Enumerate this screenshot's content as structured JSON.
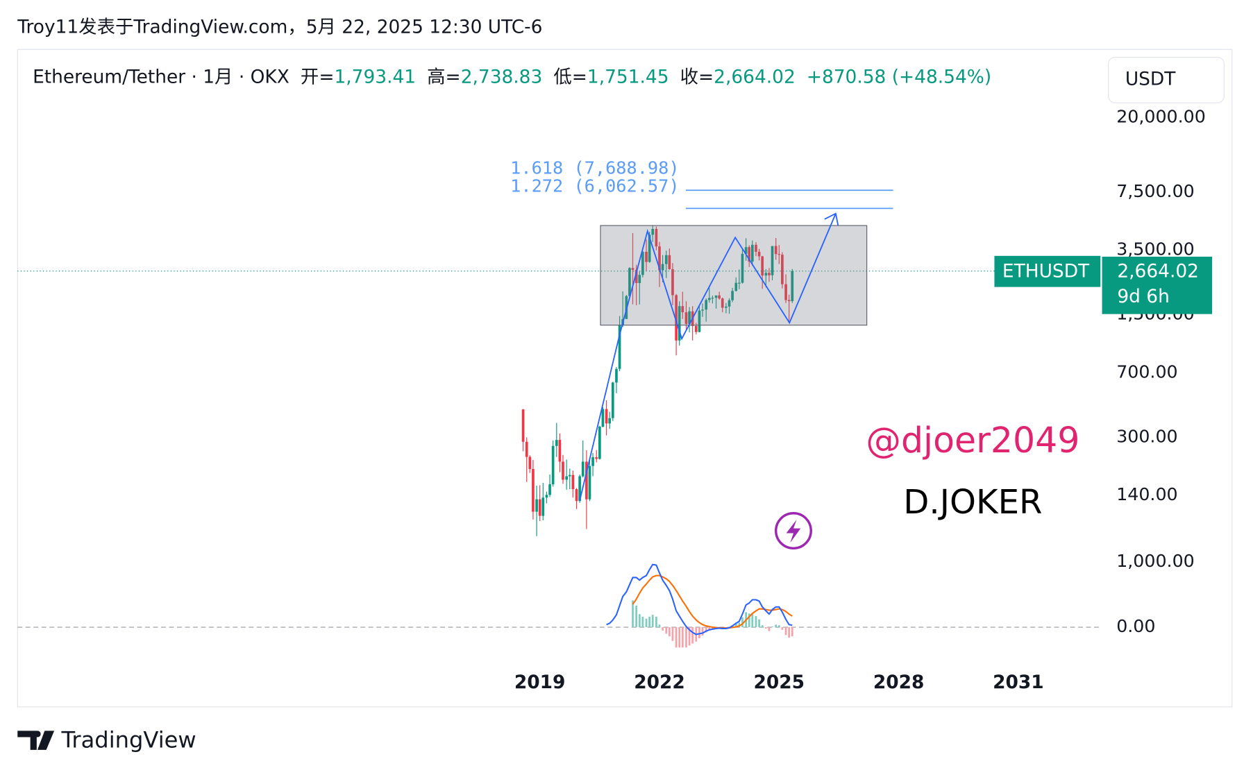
{
  "header": {
    "publisher": "Troy11发表于TradingView.com，5月 22, 2025 12:30 UTC-6"
  },
  "legend": {
    "symbol": "Ethereum/Tether · 1月 · OKX",
    "open_label": "开=",
    "open": "1,793.41",
    "high_label": "高=",
    "high": "2,738.83",
    "low_label": "低=",
    "low": "1,751.45",
    "close_label": "收=",
    "close": "2,664.02",
    "change": "+870.58 (+48.54%)"
  },
  "currency": "USDT",
  "price_tag": {
    "symbol": "ETHUSDT",
    "price": {
      "value": 2664.02,
      "label": "2,664.02"
    },
    "countdown": "9d 6h"
  },
  "watermarks": {
    "handle": "@djoer2049",
    "name": "D.JOKER"
  },
  "footer": {
    "brand": "TradingView"
  },
  "chart_data": [
    {
      "type": "candlestick",
      "log_y": true,
      "up_color": "#089981",
      "down_color": "#f23645",
      "xlim": [
        2005.9,
        2033.06
      ],
      "xticks": [
        2019,
        2022,
        2025,
        2028,
        2031
      ],
      "ylim": [
        76,
        24000
      ],
      "yticks": [
        {
          "value": 20000,
          "label": "20,000.00"
        },
        {
          "value": 7500,
          "label": "7,500.00"
        },
        {
          "value": 3500,
          "label": "3,500.00"
        },
        {
          "value": 1500,
          "label": "1,500.00"
        },
        {
          "value": 700,
          "label": "700.00"
        },
        {
          "value": 300,
          "label": "300.00"
        },
        {
          "value": 140,
          "label": "140.00"
        }
      ],
      "fib_levels": [
        {
          "value": 7688.98,
          "label": "1.618 (7,688.98)"
        },
        {
          "value": 6062.57,
          "label": "1.272 (6,062.57)"
        }
      ],
      "fib_color": "#5b9cf6",
      "x": [
        2018.58,
        2018.67,
        2018.75,
        2018.83,
        2018.92,
        2019.0,
        2019.08,
        2019.17,
        2019.25,
        2019.33,
        2019.42,
        2019.5,
        2019.58,
        2019.67,
        2019.75,
        2019.83,
        2019.92,
        2020.0,
        2020.08,
        2020.17,
        2020.25,
        2020.33,
        2020.42,
        2020.5,
        2020.58,
        2020.67,
        2020.75,
        2020.83,
        2020.92,
        2021.0,
        2021.08,
        2021.17,
        2021.25,
        2021.33,
        2021.42,
        2021.5,
        2021.58,
        2021.67,
        2021.75,
        2021.83,
        2021.92,
        2022.0,
        2022.08,
        2022.17,
        2022.25,
        2022.33,
        2022.42,
        2022.5,
        2022.58,
        2022.67,
        2022.75,
        2022.83,
        2022.92,
        2023.0,
        2023.08,
        2023.17,
        2023.25,
        2023.33,
        2023.42,
        2023.5,
        2023.58,
        2023.67,
        2023.75,
        2023.83,
        2023.92,
        2024.0,
        2024.08,
        2024.17,
        2024.25,
        2024.33,
        2024.42,
        2024.5,
        2024.58,
        2024.67,
        2024.75,
        2024.83,
        2024.92,
        2025.0,
        2025.08,
        2025.17,
        2025.25,
        2025.33
      ],
      "open": [
        433,
        283,
        232,
        198,
        113,
        133,
        107,
        136,
        141,
        162,
        268,
        290,
        218,
        172,
        180,
        183,
        152,
        130,
        180,
        218,
        133,
        206,
        231,
        226,
        345,
        435,
        360,
        386,
        616,
        737,
        1313,
        1418,
        1918,
        2772,
        2706,
        2275,
        2532,
        3430,
        3000,
        4290,
        4630,
        3680,
        2690,
        2920,
        3280,
        2730,
        1940,
        1070,
        1680,
        1550,
        1330,
        1570,
        1295,
        1196,
        1585,
        1605,
        1822,
        1870,
        1875,
        1934,
        1857,
        1645,
        1671,
        1815,
        2050,
        2282,
        2283,
        3340,
        3645,
        3015,
        3760,
        3430,
        3230,
        2510,
        2600,
        2520,
        3700,
        3330,
        3300,
        2240,
        1820,
        1793.41
      ],
      "high": [
        435,
        300,
        237,
        223,
        159,
        160,
        165,
        147,
        184,
        288,
        363,
        316,
        238,
        224,
        199,
        194,
        154,
        184,
        288,
        253,
        227,
        244,
        254,
        349,
        446,
        488,
        420,
        622,
        756,
        1475,
        2040,
        1945,
        2798,
        4380,
        2890,
        2650,
        3470,
        4030,
        4460,
        4870,
        4780,
        3900,
        3285,
        3480,
        3580,
        2960,
        1970,
        1790,
        2030,
        1790,
        1660,
        1680,
        1350,
        1680,
        1740,
        1860,
        2140,
        1930,
        1930,
        2030,
        1880,
        1750,
        1865,
        2135,
        2450,
        2720,
        3520,
        4095,
        3730,
        3980,
        3890,
        3560,
        3250,
        2730,
        2770,
        3680,
        4110,
        3745,
        3410,
        2550,
        1955,
        2738.83
      ],
      "low": [
        250,
        167,
        188,
        102,
        82,
        100,
        101,
        126,
        137,
        157,
        232,
        190,
        163,
        151,
        152,
        136,
        117,
        127,
        177,
        90,
        130,
        180,
        216,
        224,
        342,
        308,
        335,
        372,
        535,
        715,
        1280,
        1440,
        1931,
        1720,
        1700,
        1718,
        2450,
        2650,
        2970,
        3900,
        3500,
        2160,
        2300,
        2430,
        2710,
        1700,
        880,
        1000,
        1420,
        1220,
        1190,
        1070,
        1160,
        1190,
        1460,
        1370,
        1760,
        1740,
        1625,
        1830,
        1550,
        1530,
        1520,
        1770,
        2040,
        2100,
        2260,
        3050,
        2810,
        2860,
        3240,
        3060,
        2110,
        2150,
        2310,
        2360,
        3090,
        2920,
        2120,
        1750,
        1385,
        1751.45
      ],
      "close": [
        283,
        232,
        198,
        113,
        133,
        107,
        136,
        141,
        162,
        268,
        290,
        218,
        172,
        180,
        183,
        152,
        130,
        180,
        218,
        133,
        206,
        231,
        226,
        345,
        435,
        360,
        386,
        616,
        737,
        1313,
        1418,
        1918,
        2772,
        2706,
        2275,
        2532,
        3430,
        3000,
        4290,
        4630,
        3680,
        2690,
        2920,
        3280,
        2730,
        1940,
        1070,
        1680,
        1550,
        1330,
        1570,
        1295,
        1196,
        1585,
        1605,
        1822,
        1870,
        1875,
        1934,
        1857,
        1645,
        1671,
        1815,
        2050,
        2282,
        2283,
        3340,
        3645,
        3015,
        3760,
        3430,
        3230,
        2510,
        2600,
        2520,
        3700,
        3330,
        3300,
        2240,
        1820,
        1793.41,
        2664.02
      ]
    },
    {
      "type": "macd",
      "xlim": [
        2005.9,
        2033.06
      ],
      "ylim": [
        -524,
        1183
      ],
      "yticks": [
        {
          "value": 1000,
          "label": "1,000.00"
        },
        {
          "value": 0,
          "label": "0.00"
        }
      ],
      "macd_color": "#2962ff",
      "signal_color": "#ff6d00",
      "hist_up_color": "#7fcdbf",
      "hist_down_color": "#f5a3a9",
      "x": [
        2020.67,
        2020.75,
        2020.83,
        2020.92,
        2021.0,
        2021.08,
        2021.17,
        2021.25,
        2021.33,
        2021.42,
        2021.5,
        2021.58,
        2021.67,
        2021.75,
        2021.83,
        2021.92,
        2022.0,
        2022.08,
        2022.17,
        2022.25,
        2022.33,
        2022.42,
        2022.5,
        2022.58,
        2022.67,
        2022.75,
        2022.83,
        2022.92,
        2023.0,
        2023.08,
        2023.17,
        2023.25,
        2023.33,
        2023.42,
        2023.5,
        2023.58,
        2023.67,
        2023.75,
        2023.83,
        2023.92,
        2024.0,
        2024.08,
        2024.17,
        2024.25,
        2024.33,
        2024.42,
        2024.5,
        2024.58,
        2024.67,
        2024.75,
        2024.83,
        2024.92,
        2025.0,
        2025.08,
        2025.17,
        2025.25,
        2025.33
      ],
      "macd": [
        40,
        60,
        110,
        190,
        330,
        470,
        540,
        650,
        760,
        760,
        720,
        760,
        790,
        880,
        960,
        950,
        830,
        720,
        640,
        560,
        430,
        250,
        170,
        90,
        10,
        -40,
        -80,
        -110,
        -100,
        -90,
        -60,
        -40,
        -30,
        -20,
        -15,
        -20,
        -20,
        -10,
        20,
        60,
        90,
        200,
        340,
        370,
        420,
        420,
        400,
        310,
        250,
        200,
        270,
        310,
        310,
        230,
        120,
        40,
        30
      ],
      "signal": [
        null,
        null,
        null,
        null,
        null,
        null,
        null,
        null,
        350,
        430,
        520,
        600,
        660,
        720,
        770,
        790,
        790,
        770,
        740,
        700,
        640,
        560,
        480,
        400,
        320,
        240,
        170,
        110,
        70,
        40,
        20,
        10,
        0,
        -5,
        -10,
        -10,
        -12,
        -10,
        -5,
        5,
        20,
        50,
        110,
        160,
        210,
        250,
        280,
        280,
        270,
        260,
        260,
        270,
        280,
        270,
        240,
        200,
        170
      ],
      "histogram": [
        null,
        null,
        null,
        null,
        null,
        null,
        null,
        null,
        410,
        330,
        200,
        160,
        130,
        160,
        190,
        160,
        40,
        -50,
        -100,
        -140,
        -210,
        -310,
        -310,
        -310,
        -310,
        -280,
        -250,
        -220,
        -170,
        -130,
        -80,
        -50,
        -30,
        -15,
        -5,
        -10,
        -8,
        0,
        25,
        55,
        70,
        150,
        230,
        210,
        210,
        170,
        120,
        30,
        -20,
        -60,
        10,
        40,
        30,
        -40,
        -120,
        -160,
        -140
      ]
    }
  ]
}
